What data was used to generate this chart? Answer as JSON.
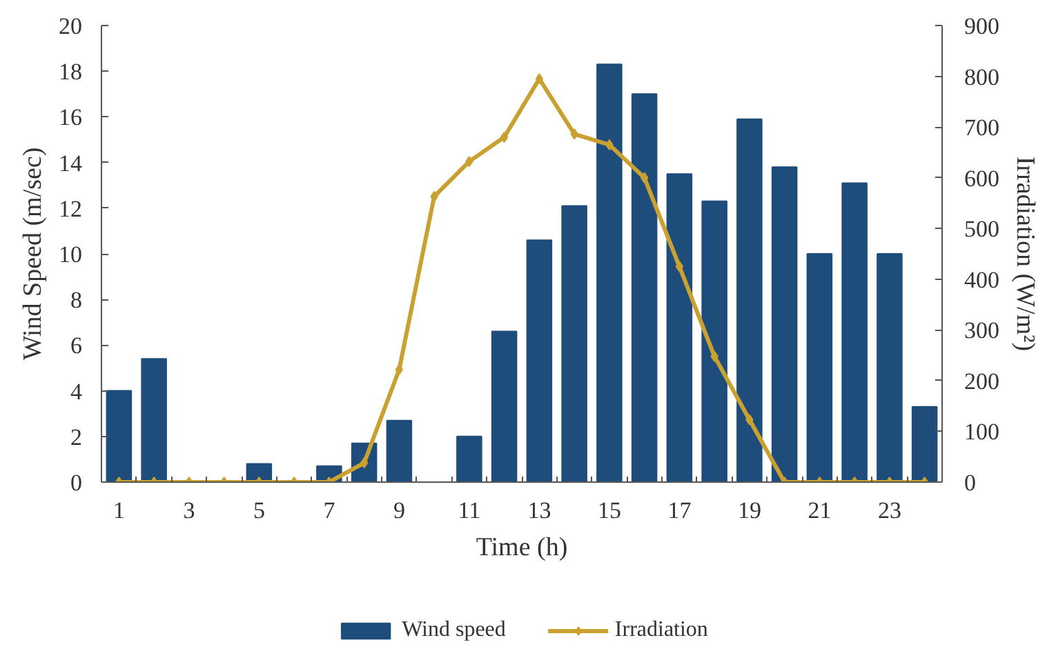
{
  "chart_data": {
    "type": "bar",
    "x": [
      1,
      2,
      3,
      4,
      5,
      6,
      7,
      8,
      9,
      10,
      11,
      12,
      13,
      14,
      15,
      16,
      17,
      18,
      19,
      20,
      21,
      22,
      23,
      24
    ],
    "series": [
      {
        "name": "Wind speed",
        "color": "#1e4d7b",
        "values": [
          4.0,
          5.4,
          0,
          0,
          0.8,
          0,
          0.7,
          1.7,
          2.7,
          0,
          2.0,
          6.6,
          10.6,
          12.1,
          18.3,
          17.0,
          13.5,
          12.3,
          15.9,
          13.8,
          10.0,
          13.1,
          10.0,
          3.3
        ]
      },
      {
        "name": "Irradiation",
        "type": "line",
        "axis": "y2",
        "color": "#c9a130",
        "values": [
          0,
          0,
          0,
          0,
          0,
          0,
          0,
          38,
          222,
          563,
          632,
          680,
          795,
          686,
          665,
          600,
          425,
          248,
          123,
          0,
          0,
          0,
          0,
          0
        ]
      }
    ],
    "xlabel": "Time (h)",
    "ylabel": "Wind Speed (m/sec)",
    "y2label": "Irradiation (W/m²)",
    "xlim": [
      0.5,
      24.5
    ],
    "xticks": [
      1,
      3,
      5,
      7,
      9,
      11,
      13,
      15,
      17,
      19,
      21,
      23
    ],
    "ylim": [
      0,
      20
    ],
    "yticks": [
      0,
      2,
      4,
      6,
      8,
      10,
      12,
      14,
      16,
      18,
      20
    ],
    "y2lim": [
      0,
      900
    ],
    "y2ticks": [
      0,
      100,
      200,
      300,
      400,
      500,
      600,
      700,
      800,
      900
    ],
    "legend": "bottom",
    "marker": "diamond",
    "line_style": "solid"
  }
}
